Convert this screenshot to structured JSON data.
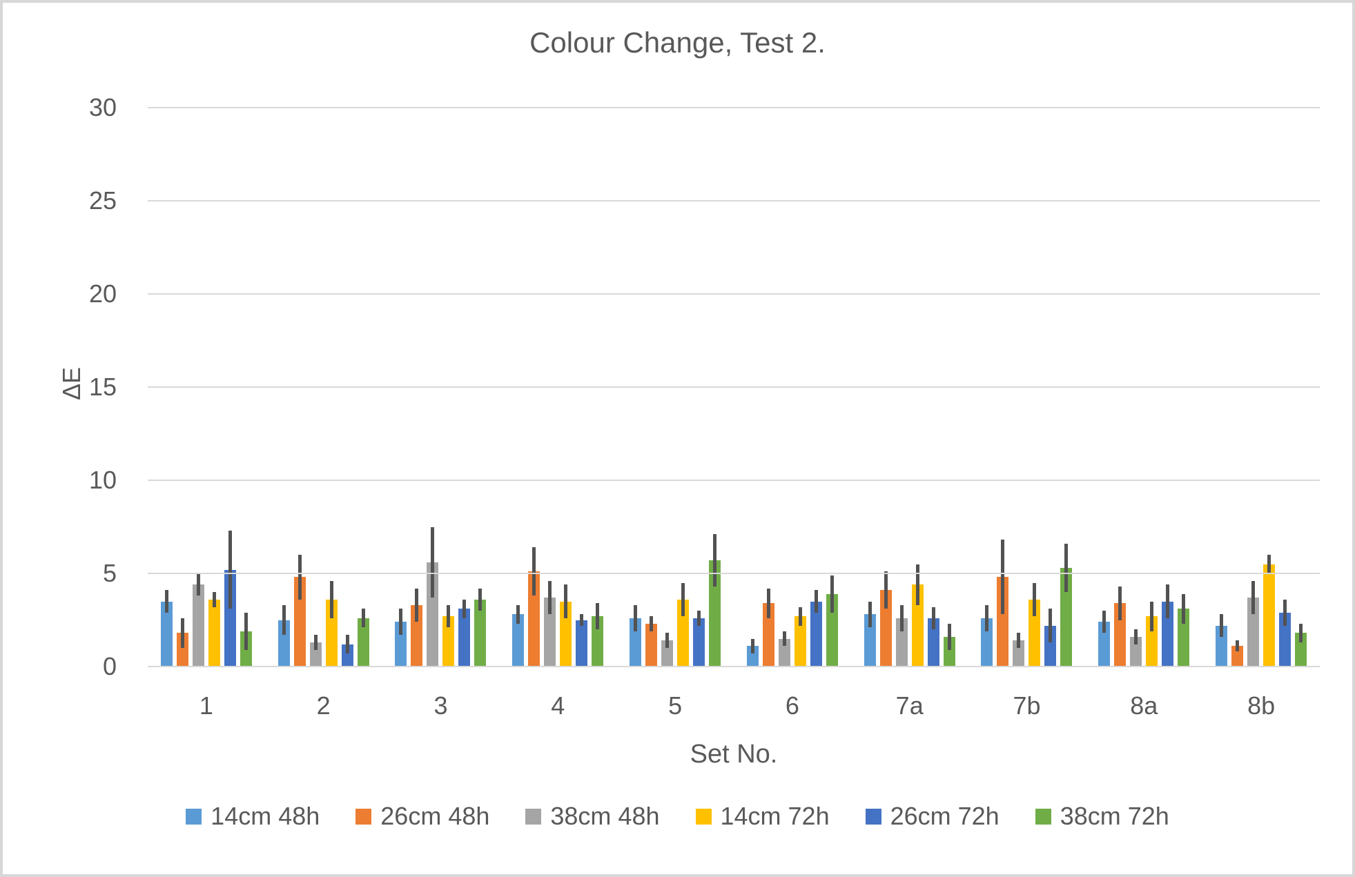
{
  "title": "Colour Change, Test 2.",
  "axes": {
    "y_title": "ΔE",
    "x_title": "Set No."
  },
  "chart_data": {
    "type": "bar",
    "title": "Colour Change, Test 2.",
    "xlabel": "Set No.",
    "ylabel": "ΔE",
    "ylim": [
      0,
      30
    ],
    "yticks": [
      0,
      5,
      10,
      15,
      20,
      25,
      30
    ],
    "grid": true,
    "legend_position": "bottom",
    "error_bars": true,
    "categories": [
      "1",
      "2",
      "3",
      "4",
      "5",
      "6",
      "7a",
      "7b",
      "8a",
      "8b"
    ],
    "series": [
      {
        "name": "14cm 48h",
        "color": "#5B9BD5",
        "values": [
          3.5,
          2.5,
          2.4,
          2.8,
          2.6,
          1.1,
          2.8,
          2.6,
          2.4,
          2.2
        ],
        "errors": [
          0.6,
          0.8,
          0.7,
          0.5,
          0.7,
          0.4,
          0.7,
          0.7,
          0.6,
          0.6
        ]
      },
      {
        "name": "26cm 48h",
        "color": "#ED7D31",
        "values": [
          1.8,
          4.8,
          3.3,
          5.1,
          2.3,
          3.4,
          4.1,
          4.8,
          3.4,
          1.1
        ],
        "errors": [
          0.8,
          1.2,
          0.9,
          1.3,
          0.4,
          0.8,
          1.0,
          2.0,
          0.9,
          0.3
        ]
      },
      {
        "name": "38cm 48h",
        "color": "#A5A5A5",
        "values": [
          4.4,
          1.3,
          5.6,
          3.7,
          1.4,
          1.5,
          2.6,
          1.4,
          1.6,
          3.7
        ],
        "errors": [
          0.6,
          0.4,
          1.9,
          0.9,
          0.4,
          0.4,
          0.7,
          0.4,
          0.4,
          0.9
        ]
      },
      {
        "name": "14cm 72h",
        "color": "#FFC000",
        "values": [
          3.6,
          3.6,
          2.7,
          3.5,
          3.6,
          2.7,
          4.4,
          3.6,
          2.7,
          5.5
        ],
        "errors": [
          0.4,
          1.0,
          0.6,
          0.9,
          0.9,
          0.5,
          1.1,
          0.9,
          0.8,
          0.5
        ]
      },
      {
        "name": "26cm 72h",
        "color": "#4472C4",
        "values": [
          5.2,
          1.2,
          3.1,
          2.5,
          2.6,
          3.5,
          2.6,
          2.2,
          3.5,
          2.9
        ],
        "errors": [
          2.1,
          0.5,
          0.5,
          0.3,
          0.4,
          0.6,
          0.6,
          0.9,
          0.9,
          0.7
        ]
      },
      {
        "name": "38cm 72h",
        "color": "#70AD47",
        "values": [
          1.9,
          2.6,
          3.6,
          2.7,
          5.7,
          3.9,
          1.6,
          5.3,
          3.1,
          1.8
        ],
        "errors": [
          1.0,
          0.5,
          0.6,
          0.7,
          1.4,
          1.0,
          0.7,
          1.3,
          0.8,
          0.5
        ]
      }
    ]
  },
  "style": {
    "gridline_color": "#d9d9d9",
    "error_bar_color": "#525252",
    "text_color": "#595959",
    "frame_border_color": "#d7d7d7"
  }
}
